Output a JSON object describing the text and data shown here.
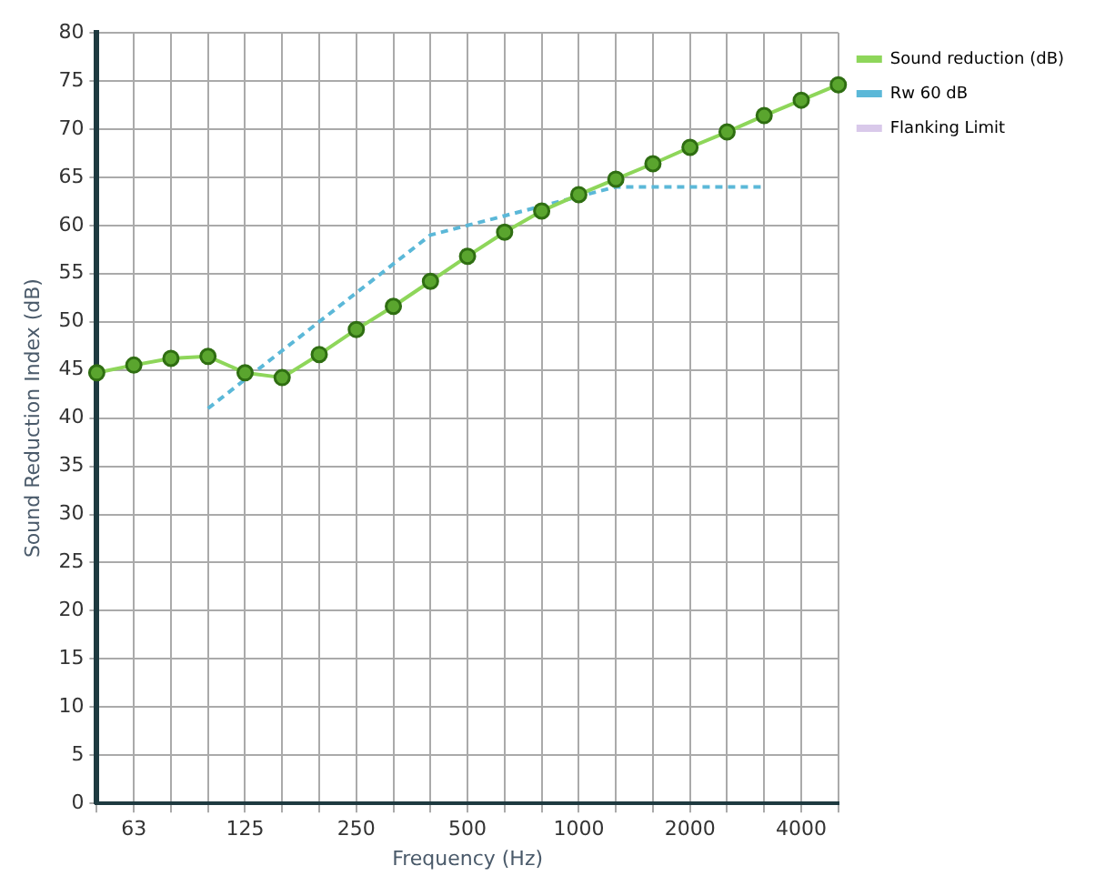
{
  "chart_data": {
    "type": "line",
    "xlabel": "Frequency (Hz)",
    "ylabel": "Sound Reduction Index (dB)",
    "categories": [
      null,
      "63",
      null,
      null,
      "125",
      null,
      null,
      "250",
      null,
      null,
      "500",
      null,
      null,
      "1000",
      null,
      null,
      "2000",
      null,
      null,
      "4000",
      null
    ],
    "series": [
      {
        "name": "Sound reduction (dB)",
        "color": "#8ed65a",
        "marker": "circle",
        "line_style": "solid",
        "values": [
          44.7,
          45.5,
          46.2,
          46.4,
          44.7,
          44.2,
          46.6,
          49.2,
          51.6,
          54.2,
          56.8,
          59.3,
          61.5,
          63.2,
          64.8,
          66.4,
          68.1,
          69.7,
          71.4,
          73.0,
          74.6
        ]
      },
      {
        "name": "Rw 60 dB",
        "color": "#5bb8d8",
        "marker": "none",
        "line_style": "dashed",
        "values": [
          null,
          null,
          null,
          41,
          44,
          47,
          50,
          53,
          56,
          59,
          60,
          61,
          62,
          63,
          64,
          64,
          64,
          64,
          64,
          null,
          null
        ]
      },
      {
        "name": "Flanking Limit",
        "color": "#d9c9ea",
        "marker": "none",
        "line_style": "solid",
        "values": [
          null,
          null,
          null,
          null,
          null,
          null,
          null,
          null,
          null,
          null,
          null,
          null,
          null,
          null,
          null,
          null,
          null,
          null,
          null,
          null,
          null
        ]
      }
    ],
    "ylim": [
      0,
      80
    ],
    "yticks": [
      0,
      5,
      10,
      15,
      20,
      25,
      30,
      35,
      40,
      45,
      50,
      55,
      60,
      65,
      70,
      75,
      80
    ],
    "grid": true,
    "legend": "top right"
  }
}
